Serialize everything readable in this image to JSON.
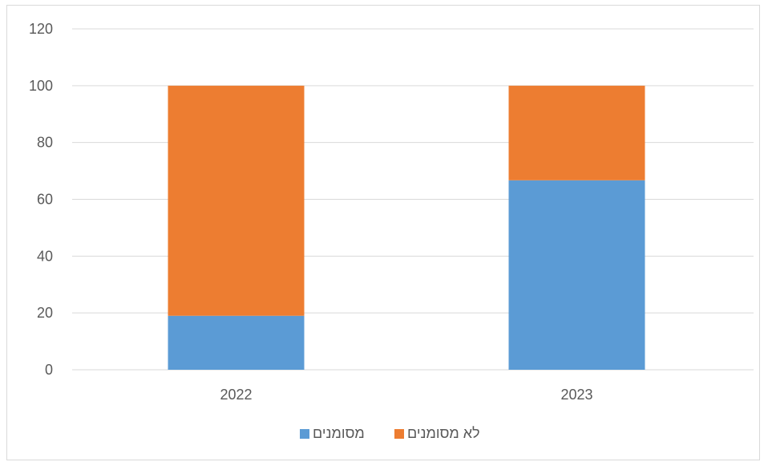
{
  "chart_data": {
    "type": "bar",
    "stacked": true,
    "title": "",
    "xlabel": "",
    "ylabel": "",
    "categories": [
      "2022",
      "2023"
    ],
    "series": [
      {
        "name": "מסומנים",
        "values": [
          19,
          66.7
        ],
        "color": "#5b9bd5"
      },
      {
        "name": "לא מסומנים",
        "values": [
          81,
          33.3
        ],
        "color": "#ed7d31"
      }
    ],
    "ylim": [
      0,
      120
    ],
    "yticks": [
      0,
      20,
      40,
      60,
      80,
      100,
      120
    ],
    "grid": true,
    "legend_position": "bottom",
    "gridline_color": "#d9d9d9"
  }
}
